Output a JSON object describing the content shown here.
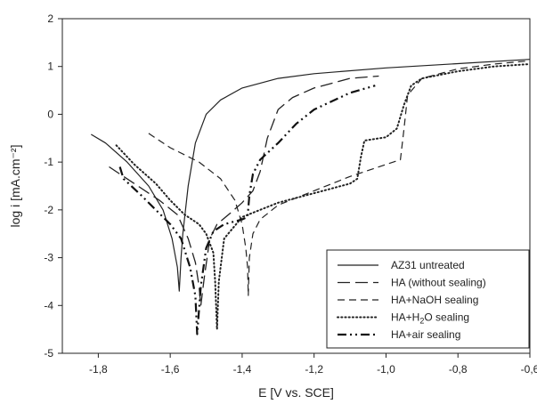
{
  "chart_data": {
    "type": "line",
    "xlabel": "E [V vs. SCE]",
    "ylabel": "log i [mA.cm⁻²]",
    "xlim": [
      -1.9,
      -0.6
    ],
    "ylim": [
      -5,
      2
    ],
    "xticks": [
      -1.8,
      -1.6,
      -1.4,
      -1.2,
      -1.0,
      -0.8,
      -0.6
    ],
    "xtick_labels": [
      "-1,8",
      "-1,6",
      "-1,4",
      "-1,2",
      "-1,0",
      "-0,8",
      "-0,6"
    ],
    "yticks": [
      -5,
      -4,
      -3,
      -2,
      -1,
      0,
      1,
      2
    ],
    "ytick_labels": [
      "-5",
      "-4",
      "-3",
      "-2",
      "-1",
      "0",
      "1",
      "2"
    ],
    "grid": false,
    "legend_position": "bottom-right",
    "series": [
      {
        "name": "AZ31 untreated",
        "color": "#222222",
        "dash": "solid",
        "points": [
          [
            -1.82,
            -0.42
          ],
          [
            -1.78,
            -0.6
          ],
          [
            -1.72,
            -1.0
          ],
          [
            -1.66,
            -1.5
          ],
          [
            -1.62,
            -2.0
          ],
          [
            -1.595,
            -2.6
          ],
          [
            -1.58,
            -3.2
          ],
          [
            -1.575,
            -3.7
          ],
          [
            -1.57,
            -3.0
          ],
          [
            -1.565,
            -2.5
          ],
          [
            -1.55,
            -1.5
          ],
          [
            -1.53,
            -0.6
          ],
          [
            -1.5,
            0.0
          ],
          [
            -1.46,
            0.3
          ],
          [
            -1.4,
            0.55
          ],
          [
            -1.3,
            0.75
          ],
          [
            -1.2,
            0.85
          ],
          [
            -1.0,
            0.97
          ],
          [
            -0.8,
            1.06
          ],
          [
            -0.6,
            1.15
          ]
        ]
      },
      {
        "name": "HA (without sealing)",
        "color": "#222222",
        "dash": "long-dash",
        "points": [
          [
            -1.77,
            -1.1
          ],
          [
            -1.7,
            -1.45
          ],
          [
            -1.63,
            -1.8
          ],
          [
            -1.58,
            -2.1
          ],
          [
            -1.55,
            -2.6
          ],
          [
            -1.53,
            -3.1
          ],
          [
            -1.52,
            -3.6
          ],
          [
            -1.515,
            -4.0
          ],
          [
            -1.505,
            -3.4
          ],
          [
            -1.49,
            -2.6
          ],
          [
            -1.47,
            -2.3
          ],
          [
            -1.43,
            -2.05
          ],
          [
            -1.4,
            -1.85
          ],
          [
            -1.37,
            -1.6
          ],
          [
            -1.35,
            -1.2
          ],
          [
            -1.33,
            -0.5
          ],
          [
            -1.3,
            0.1
          ],
          [
            -1.26,
            0.35
          ],
          [
            -1.2,
            0.55
          ],
          [
            -1.1,
            0.75
          ],
          [
            -1.02,
            0.8
          ]
        ]
      },
      {
        "name": "HA+NaOH sealing",
        "color": "#222222",
        "dash": "dash",
        "points": [
          [
            -1.66,
            -0.4
          ],
          [
            -1.6,
            -0.7
          ],
          [
            -1.52,
            -1.0
          ],
          [
            -1.46,
            -1.35
          ],
          [
            -1.42,
            -1.8
          ],
          [
            -1.4,
            -2.3
          ],
          [
            -1.39,
            -2.8
          ],
          [
            -1.385,
            -3.2
          ],
          [
            -1.383,
            -3.8
          ],
          [
            -1.38,
            -3.0
          ],
          [
            -1.37,
            -2.5
          ],
          [
            -1.35,
            -2.2
          ],
          [
            -1.3,
            -1.9
          ],
          [
            -1.2,
            -1.6
          ],
          [
            -1.1,
            -1.3
          ],
          [
            -1.0,
            -1.05
          ],
          [
            -0.96,
            -0.95
          ],
          [
            -0.95,
            -0.3
          ],
          [
            -0.94,
            0.4
          ],
          [
            -0.9,
            0.75
          ],
          [
            -0.8,
            0.95
          ],
          [
            -0.7,
            1.05
          ],
          [
            -0.6,
            1.12
          ]
        ]
      },
      {
        "name": "HA+H₂O sealing",
        "color": "#222222",
        "dash": "dot",
        "points": [
          [
            -1.75,
            -0.65
          ],
          [
            -1.7,
            -1.05
          ],
          [
            -1.64,
            -1.45
          ],
          [
            -1.6,
            -1.8
          ],
          [
            -1.56,
            -2.1
          ],
          [
            -1.52,
            -2.3
          ],
          [
            -1.5,
            -2.5
          ],
          [
            -1.48,
            -2.9
          ],
          [
            -1.475,
            -3.5
          ],
          [
            -1.47,
            -4.5
          ],
          [
            -1.465,
            -3.5
          ],
          [
            -1.45,
            -2.6
          ],
          [
            -1.4,
            -2.15
          ],
          [
            -1.3,
            -1.85
          ],
          [
            -1.2,
            -1.65
          ],
          [
            -1.1,
            -1.45
          ],
          [
            -1.08,
            -1.35
          ],
          [
            -1.07,
            -0.9
          ],
          [
            -1.06,
            -0.55
          ],
          [
            -1.0,
            -0.48
          ],
          [
            -0.97,
            -0.3
          ],
          [
            -0.95,
            0.2
          ],
          [
            -0.93,
            0.6
          ],
          [
            -0.9,
            0.75
          ],
          [
            -0.8,
            0.9
          ],
          [
            -0.7,
            1.0
          ],
          [
            -0.6,
            1.05
          ]
        ]
      },
      {
        "name": "HA+air sealing",
        "color": "#111111",
        "dash": "dash-dot",
        "points": [
          [
            -1.74,
            -1.1
          ],
          [
            -1.73,
            -1.35
          ],
          [
            -1.68,
            -1.7
          ],
          [
            -1.64,
            -2.0
          ],
          [
            -1.6,
            -2.3
          ],
          [
            -1.57,
            -2.6
          ],
          [
            -1.545,
            -3.2
          ],
          [
            -1.53,
            -3.8
          ],
          [
            -1.525,
            -4.6
          ],
          [
            -1.515,
            -3.6
          ],
          [
            -1.5,
            -2.8
          ],
          [
            -1.48,
            -2.45
          ],
          [
            -1.45,
            -2.3
          ],
          [
            -1.4,
            -2.2
          ],
          [
            -1.385,
            -2.15
          ],
          [
            -1.38,
            -1.7
          ],
          [
            -1.37,
            -1.25
          ],
          [
            -1.35,
            -0.95
          ],
          [
            -1.3,
            -0.6
          ],
          [
            -1.25,
            -0.2
          ],
          [
            -1.2,
            0.1
          ],
          [
            -1.1,
            0.45
          ],
          [
            -1.03,
            0.6
          ]
        ]
      }
    ],
    "legend": [
      {
        "label": "AZ31 untreated"
      },
      {
        "label": "HA (without sealing)"
      },
      {
        "label": "HA+NaOH sealing"
      },
      {
        "label_pre": "HA+H",
        "label_sub": "2",
        "label_post": "O sealing"
      },
      {
        "label": "HA+air sealing"
      }
    ]
  }
}
